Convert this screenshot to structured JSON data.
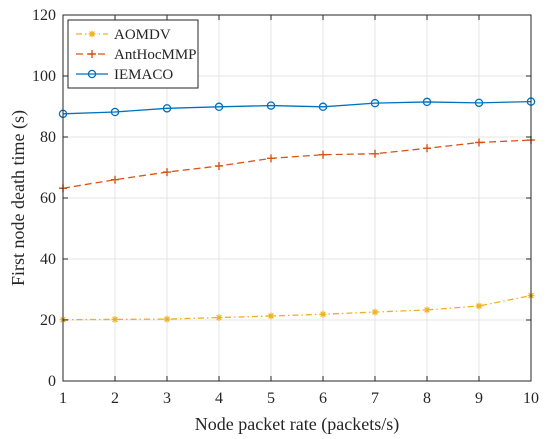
{
  "chart_data": {
    "type": "line",
    "title": "",
    "xlabel": "Node packet rate (packets/s)",
    "ylabel": "First node death time (s)",
    "x": [
      1,
      2,
      3,
      4,
      5,
      6,
      7,
      8,
      9,
      10
    ],
    "xlim": [
      1,
      10
    ],
    "ylim": [
      0,
      120
    ],
    "xticks": [
      1,
      2,
      3,
      4,
      5,
      6,
      7,
      8,
      9,
      10
    ],
    "yticks": [
      0,
      20,
      40,
      60,
      80,
      100,
      120
    ],
    "grid": true,
    "legend_position": "top-left",
    "series": [
      {
        "name": "AOMDV",
        "color": "#EDB120",
        "line_style": "dash-dot",
        "marker": "asterisk",
        "values": [
          20.1,
          20.2,
          20.3,
          20.8,
          21.3,
          21.9,
          22.6,
          23.3,
          24.6,
          28.0
        ]
      },
      {
        "name": "AntHocMMP",
        "color": "#D95319",
        "line_style": "dashed",
        "marker": "plus",
        "values": [
          63.2,
          66.0,
          68.5,
          70.5,
          73.0,
          74.2,
          74.5,
          76.3,
          78.2,
          79.0
        ]
      },
      {
        "name": "IEMACO",
        "color": "#0072BD",
        "line_style": "solid",
        "marker": "circle",
        "values": [
          87.6,
          88.2,
          89.4,
          89.9,
          90.3,
          89.9,
          91.1,
          91.5,
          91.2,
          91.6
        ]
      }
    ]
  }
}
